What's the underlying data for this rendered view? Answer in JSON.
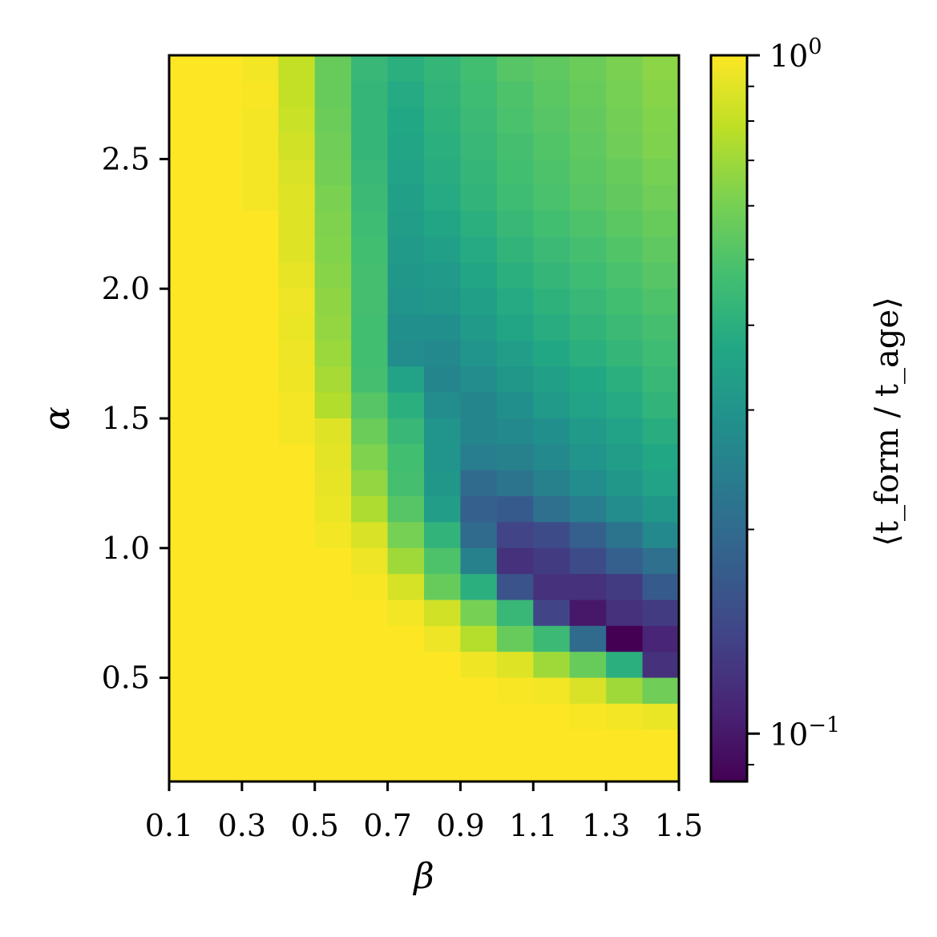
{
  "chart_data": {
    "type": "heatmap",
    "xlabel": "β",
    "ylabel": "α",
    "colorbar_label": "⟨t_form / t_age⟩",
    "colormap": "viridis",
    "color_scale": "log",
    "color_range": [
      0.085,
      1.0
    ],
    "colorbar_ticks": [
      {
        "value": 1.0,
        "base": "10",
        "exp": "0"
      },
      {
        "value": 0.1,
        "base": "10",
        "exp": "−1"
      }
    ],
    "x_range": [
      0.1,
      1.5
    ],
    "y_range": [
      0.1,
      2.9
    ],
    "x_ticks": [
      "0.1",
      "0.3",
      "0.5",
      "0.7",
      "0.9",
      "1.1",
      "1.3",
      "1.5"
    ],
    "y_ticks": [
      "0.5",
      "1.0",
      "1.5",
      "2.0",
      "2.5"
    ],
    "x_edges": [
      0.1,
      0.2,
      0.3,
      0.4,
      0.5,
      0.6,
      0.7,
      0.8,
      0.9,
      1.0,
      1.1,
      1.2,
      1.3,
      1.4,
      1.5
    ],
    "y_edges": [
      0.1,
      0.2,
      0.3,
      0.4,
      0.5,
      0.6,
      0.7,
      0.8,
      0.9,
      1.0,
      1.1,
      1.2,
      1.3,
      1.4,
      1.5,
      1.6,
      1.7,
      1.8,
      1.9,
      2.0,
      2.1,
      2.2,
      2.3,
      2.4,
      2.5,
      2.6,
      2.7,
      2.8,
      2.9
    ],
    "values_rows_top_to_bottom": [
      [
        1.0,
        1.0,
        0.96,
        0.8,
        0.56,
        0.44,
        0.4,
        0.43,
        0.47,
        0.52,
        0.54,
        0.57,
        0.61,
        0.65
      ],
      [
        1.0,
        1.0,
        0.98,
        0.8,
        0.56,
        0.43,
        0.38,
        0.42,
        0.46,
        0.5,
        0.53,
        0.56,
        0.6,
        0.64
      ],
      [
        1.0,
        1.0,
        0.97,
        0.82,
        0.57,
        0.43,
        0.37,
        0.41,
        0.45,
        0.49,
        0.52,
        0.55,
        0.59,
        0.63
      ],
      [
        1.0,
        1.0,
        0.97,
        0.84,
        0.58,
        0.43,
        0.36,
        0.4,
        0.44,
        0.48,
        0.51,
        0.54,
        0.58,
        0.62
      ],
      [
        1.0,
        1.0,
        0.97,
        0.87,
        0.59,
        0.44,
        0.35,
        0.39,
        0.43,
        0.47,
        0.5,
        0.53,
        0.56,
        0.6
      ],
      [
        1.0,
        1.0,
        0.97,
        0.89,
        0.61,
        0.45,
        0.34,
        0.38,
        0.42,
        0.46,
        0.49,
        0.52,
        0.55,
        0.58
      ],
      [
        1.0,
        1.0,
        1.0,
        0.89,
        0.62,
        0.46,
        0.33,
        0.36,
        0.4,
        0.44,
        0.47,
        0.5,
        0.53,
        0.56
      ],
      [
        1.0,
        1.0,
        1.0,
        0.89,
        0.63,
        0.47,
        0.32,
        0.34,
        0.38,
        0.42,
        0.45,
        0.48,
        0.51,
        0.54
      ],
      [
        1.0,
        1.0,
        1.0,
        0.92,
        0.64,
        0.48,
        0.31,
        0.32,
        0.36,
        0.4,
        0.43,
        0.46,
        0.49,
        0.52
      ],
      [
        1.0,
        1.0,
        1.0,
        0.94,
        0.66,
        0.48,
        0.3,
        0.31,
        0.34,
        0.38,
        0.41,
        0.44,
        0.47,
        0.5
      ],
      [
        1.0,
        1.0,
        1.0,
        0.93,
        0.67,
        0.47,
        0.29,
        0.29,
        0.32,
        0.36,
        0.39,
        0.42,
        0.45,
        0.48
      ],
      [
        1.0,
        1.0,
        1.0,
        0.94,
        0.69,
        0.47,
        0.28,
        0.27,
        0.3,
        0.33,
        0.37,
        0.4,
        0.43,
        0.46
      ],
      [
        1.0,
        1.0,
        1.0,
        0.95,
        0.72,
        0.48,
        0.35,
        0.26,
        0.28,
        0.31,
        0.34,
        0.37,
        0.4,
        0.44
      ],
      [
        1.0,
        1.0,
        1.0,
        0.97,
        0.75,
        0.52,
        0.4,
        0.28,
        0.26,
        0.29,
        0.32,
        0.35,
        0.38,
        0.42
      ],
      [
        1.0,
        1.0,
        1.0,
        0.97,
        0.89,
        0.57,
        0.44,
        0.3,
        0.26,
        0.27,
        0.29,
        0.32,
        0.35,
        0.39
      ],
      [
        1.0,
        1.0,
        1.0,
        1.0,
        0.9,
        0.62,
        0.47,
        0.3,
        0.24,
        0.25,
        0.27,
        0.3,
        0.33,
        0.37
      ],
      [
        1.0,
        1.0,
        1.0,
        1.0,
        0.92,
        0.67,
        0.48,
        0.31,
        0.2,
        0.22,
        0.25,
        0.28,
        0.31,
        0.35
      ],
      [
        1.0,
        1.0,
        1.0,
        1.0,
        0.93,
        0.74,
        0.52,
        0.33,
        0.18,
        0.17,
        0.21,
        0.24,
        0.28,
        0.31
      ],
      [
        1.0,
        1.0,
        1.0,
        1.0,
        0.96,
        0.87,
        0.6,
        0.42,
        0.2,
        0.14,
        0.15,
        0.18,
        0.22,
        0.27
      ],
      [
        1.0,
        1.0,
        1.0,
        1.0,
        1.0,
        0.94,
        0.7,
        0.5,
        0.25,
        0.12,
        0.13,
        0.15,
        0.18,
        0.21
      ],
      [
        1.0,
        1.0,
        1.0,
        1.0,
        1.0,
        0.98,
        0.86,
        0.56,
        0.4,
        0.16,
        0.12,
        0.12,
        0.13,
        0.17
      ],
      [
        1.0,
        1.0,
        1.0,
        1.0,
        1.0,
        1.0,
        0.96,
        0.84,
        0.6,
        0.44,
        0.14,
        0.1,
        0.12,
        0.13
      ],
      [
        1.0,
        1.0,
        1.0,
        1.0,
        1.0,
        1.0,
        1.0,
        0.94,
        0.76,
        0.56,
        0.45,
        0.2,
        0.085,
        0.11
      ],
      [
        1.0,
        1.0,
        1.0,
        1.0,
        1.0,
        1.0,
        1.0,
        1.0,
        0.95,
        0.89,
        0.7,
        0.56,
        0.4,
        0.12
      ],
      [
        1.0,
        1.0,
        1.0,
        1.0,
        1.0,
        1.0,
        1.0,
        1.0,
        1.0,
        0.98,
        0.96,
        0.87,
        0.7,
        0.58
      ],
      [
        1.0,
        1.0,
        1.0,
        1.0,
        1.0,
        1.0,
        1.0,
        1.0,
        1.0,
        1.0,
        1.0,
        0.98,
        0.96,
        0.93
      ],
      [
        1.0,
        1.0,
        1.0,
        1.0,
        1.0,
        1.0,
        1.0,
        1.0,
        1.0,
        1.0,
        1.0,
        1.0,
        1.0,
        1.0
      ],
      [
        1.0,
        1.0,
        1.0,
        1.0,
        1.0,
        1.0,
        1.0,
        1.0,
        1.0,
        1.0,
        1.0,
        1.0,
        1.0,
        1.0
      ]
    ]
  }
}
